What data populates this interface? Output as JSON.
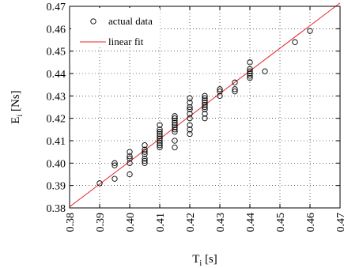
{
  "chart_data": {
    "type": "scatter",
    "xlabel_main": "T",
    "xlabel_sub": "i",
    "xlabel_unit": "[s]",
    "ylabel_main": "E",
    "ylabel_sub": "i",
    "ylabel_unit": "[Ns]",
    "xlim": [
      0.38,
      0.47
    ],
    "ylim": [
      0.38,
      0.47
    ],
    "xticks": [
      "0.38",
      "0.39",
      "0.40",
      "0.41",
      "0.42",
      "0.43",
      "0.44",
      "0.45",
      "0.46",
      "0.47"
    ],
    "yticks": [
      "0.38",
      "0.39",
      "0.40",
      "0.41",
      "0.42",
      "0.43",
      "0.44",
      "0.45",
      "0.46",
      "0.47"
    ],
    "grid": true,
    "legend_position": "top-left",
    "series": [
      {
        "name": "actual data",
        "marker": "open-circle",
        "color": "#000000",
        "points": [
          [
            0.39,
            0.391
          ],
          [
            0.395,
            0.393
          ],
          [
            0.395,
            0.399
          ],
          [
            0.395,
            0.4
          ],
          [
            0.4,
            0.395
          ],
          [
            0.4,
            0.4
          ],
          [
            0.4,
            0.402
          ],
          [
            0.4,
            0.403
          ],
          [
            0.4,
            0.405
          ],
          [
            0.405,
            0.4
          ],
          [
            0.405,
            0.401
          ],
          [
            0.405,
            0.402
          ],
          [
            0.405,
            0.404
          ],
          [
            0.405,
            0.405
          ],
          [
            0.405,
            0.406
          ],
          [
            0.405,
            0.408
          ],
          [
            0.41,
            0.407
          ],
          [
            0.41,
            0.408
          ],
          [
            0.41,
            0.409
          ],
          [
            0.41,
            0.41
          ],
          [
            0.41,
            0.411
          ],
          [
            0.41,
            0.412
          ],
          [
            0.41,
            0.413
          ],
          [
            0.41,
            0.414
          ],
          [
            0.41,
            0.415
          ],
          [
            0.41,
            0.417
          ],
          [
            0.415,
            0.407
          ],
          [
            0.415,
            0.41
          ],
          [
            0.415,
            0.414
          ],
          [
            0.415,
            0.415
          ],
          [
            0.415,
            0.416
          ],
          [
            0.415,
            0.417
          ],
          [
            0.415,
            0.418
          ],
          [
            0.415,
            0.419
          ],
          [
            0.415,
            0.42
          ],
          [
            0.415,
            0.421
          ],
          [
            0.42,
            0.413
          ],
          [
            0.42,
            0.415
          ],
          [
            0.42,
            0.417
          ],
          [
            0.42,
            0.42
          ],
          [
            0.42,
            0.422
          ],
          [
            0.42,
            0.424
          ],
          [
            0.42,
            0.425
          ],
          [
            0.42,
            0.427
          ],
          [
            0.42,
            0.429
          ],
          [
            0.425,
            0.42
          ],
          [
            0.425,
            0.422
          ],
          [
            0.425,
            0.424
          ],
          [
            0.425,
            0.425
          ],
          [
            0.425,
            0.426
          ],
          [
            0.425,
            0.427
          ],
          [
            0.425,
            0.428
          ],
          [
            0.425,
            0.429
          ],
          [
            0.425,
            0.43
          ],
          [
            0.43,
            0.43
          ],
          [
            0.43,
            0.432
          ],
          [
            0.43,
            0.433
          ],
          [
            0.435,
            0.432
          ],
          [
            0.435,
            0.433
          ],
          [
            0.435,
            0.436
          ],
          [
            0.44,
            0.438
          ],
          [
            0.44,
            0.439
          ],
          [
            0.44,
            0.44
          ],
          [
            0.44,
            0.441
          ],
          [
            0.44,
            0.442
          ],
          [
            0.44,
            0.445
          ],
          [
            0.445,
            0.441
          ],
          [
            0.455,
            0.454
          ],
          [
            0.46,
            0.459
          ]
        ]
      },
      {
        "name": "linear fit",
        "style": "line",
        "color": "#e8262b",
        "x": [
          0.38,
          0.47
        ],
        "y": [
          0.3805,
          0.4715
        ]
      }
    ]
  }
}
